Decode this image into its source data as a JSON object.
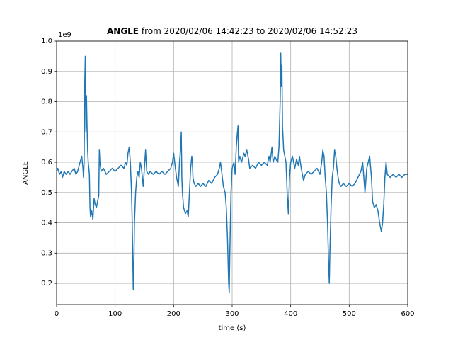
{
  "chart_data": {
    "type": "line",
    "title_bold": "ANGLE",
    "title_rest": "from 2020/02/06 14:42:23 to 2020/02/06 14:52:23",
    "x_label": "time (s)",
    "y_label": "ANGLE",
    "y_offset_label": "1e9",
    "xlim": [
      0,
      600
    ],
    "xticks": [
      0,
      100,
      200,
      300,
      400,
      500,
      600
    ],
    "ylim": [
      0.13,
      1.0
    ],
    "yticks": [
      0.2,
      0.3,
      0.4,
      0.5,
      0.6,
      0.7,
      0.8,
      0.9,
      {
        "value": 1.0,
        "label": "1.0"
      }
    ],
    "grid": true,
    "series": [
      {
        "name": "ANGLE",
        "color": "#1f77b4",
        "x": [
          0,
          2,
          5,
          8,
          10,
          13,
          16,
          20,
          23,
          26,
          30,
          33,
          36,
          40,
          43,
          45,
          46,
          47,
          48,
          49,
          50,
          51,
          52,
          53,
          54,
          55,
          56,
          57,
          58,
          60,
          62,
          64,
          66,
          68,
          70,
          72,
          73,
          74,
          76,
          80,
          85,
          90,
          95,
          100,
          105,
          110,
          115,
          118,
          120,
          122,
          124,
          126,
          127,
          128,
          129,
          130,
          131,
          132,
          133,
          135,
          137,
          139,
          141,
          143,
          145,
          148,
          150,
          152,
          154,
          157,
          160,
          165,
          170,
          175,
          180,
          185,
          190,
          195,
          198,
          200,
          203,
          205,
          208,
          210,
          212,
          213,
          214,
          215,
          217,
          220,
          223,
          225,
          227,
          229,
          231,
          232,
          233,
          235,
          238,
          242,
          246,
          250,
          255,
          260,
          265,
          270,
          275,
          278,
          280,
          282,
          285,
          288,
          290,
          292,
          294,
          295,
          296,
          298,
          300,
          303,
          305,
          307,
          309,
          310,
          311,
          313,
          316,
          320,
          322,
          325,
          328,
          330,
          335,
          340,
          345,
          350,
          355,
          360,
          363,
          365,
          368,
          370,
          373,
          375,
          378,
          380,
          382,
          383,
          384,
          385,
          386,
          387,
          388,
          390,
          392,
          394,
          396,
          398,
          400,
          403,
          405,
          407,
          410,
          413,
          415,
          418,
          420,
          422,
          425,
          430,
          435,
          440,
          445,
          450,
          453,
          455,
          457,
          459,
          461,
          463,
          465,
          466,
          467,
          469,
          471,
          473,
          475,
          477,
          479,
          481,
          483,
          486,
          490,
          495,
          500,
          505,
          510,
          515,
          520,
          523,
          525,
          527,
          530,
          535,
          538,
          540,
          543,
          546,
          549,
          552,
          555,
          557,
          559,
          561,
          563,
          565,
          570,
          575,
          580,
          585,
          590,
          595,
          600
        ],
        "values": [
          0.57,
          0.58,
          0.56,
          0.57,
          0.55,
          0.57,
          0.56,
          0.57,
          0.56,
          0.57,
          0.58,
          0.56,
          0.57,
          0.6,
          0.62,
          0.58,
          0.55,
          0.6,
          0.85,
          0.95,
          0.7,
          0.82,
          0.72,
          0.64,
          0.6,
          0.58,
          0.56,
          0.45,
          0.42,
          0.44,
          0.41,
          0.48,
          0.46,
          0.45,
          0.47,
          0.49,
          0.64,
          0.6,
          0.57,
          0.58,
          0.56,
          0.57,
          0.58,
          0.57,
          0.58,
          0.59,
          0.58,
          0.6,
          0.59,
          0.63,
          0.65,
          0.6,
          0.55,
          0.5,
          0.42,
          0.3,
          0.18,
          0.25,
          0.4,
          0.5,
          0.55,
          0.57,
          0.55,
          0.6,
          0.58,
          0.52,
          0.58,
          0.64,
          0.57,
          0.56,
          0.57,
          0.56,
          0.57,
          0.56,
          0.57,
          0.56,
          0.57,
          0.58,
          0.6,
          0.63,
          0.58,
          0.55,
          0.52,
          0.6,
          0.65,
          0.7,
          0.55,
          0.5,
          0.45,
          0.43,
          0.44,
          0.42,
          0.5,
          0.58,
          0.62,
          0.6,
          0.55,
          0.53,
          0.52,
          0.53,
          0.52,
          0.53,
          0.52,
          0.54,
          0.53,
          0.55,
          0.56,
          0.58,
          0.6,
          0.57,
          0.52,
          0.5,
          0.45,
          0.35,
          0.2,
          0.17,
          0.3,
          0.5,
          0.58,
          0.6,
          0.56,
          0.65,
          0.7,
          0.72,
          0.6,
          0.62,
          0.6,
          0.63,
          0.62,
          0.64,
          0.61,
          0.58,
          0.59,
          0.58,
          0.6,
          0.59,
          0.6,
          0.59,
          0.62,
          0.6,
          0.65,
          0.6,
          0.62,
          0.61,
          0.6,
          0.65,
          0.8,
          0.96,
          0.85,
          0.92,
          0.72,
          0.68,
          0.64,
          0.62,
          0.6,
          0.5,
          0.43,
          0.55,
          0.6,
          0.62,
          0.6,
          0.58,
          0.61,
          0.59,
          0.62,
          0.58,
          0.56,
          0.54,
          0.56,
          0.57,
          0.56,
          0.57,
          0.58,
          0.56,
          0.6,
          0.64,
          0.62,
          0.55,
          0.5,
          0.4,
          0.25,
          0.2,
          0.3,
          0.45,
          0.55,
          0.58,
          0.64,
          0.62,
          0.58,
          0.55,
          0.53,
          0.52,
          0.53,
          0.52,
          0.53,
          0.52,
          0.53,
          0.55,
          0.57,
          0.6,
          0.55,
          0.5,
          0.58,
          0.62,
          0.55,
          0.47,
          0.45,
          0.46,
          0.44,
          0.4,
          0.37,
          0.4,
          0.46,
          0.55,
          0.6,
          0.56,
          0.55,
          0.56,
          0.55,
          0.56,
          0.55,
          0.56,
          0.56
        ]
      }
    ]
  }
}
